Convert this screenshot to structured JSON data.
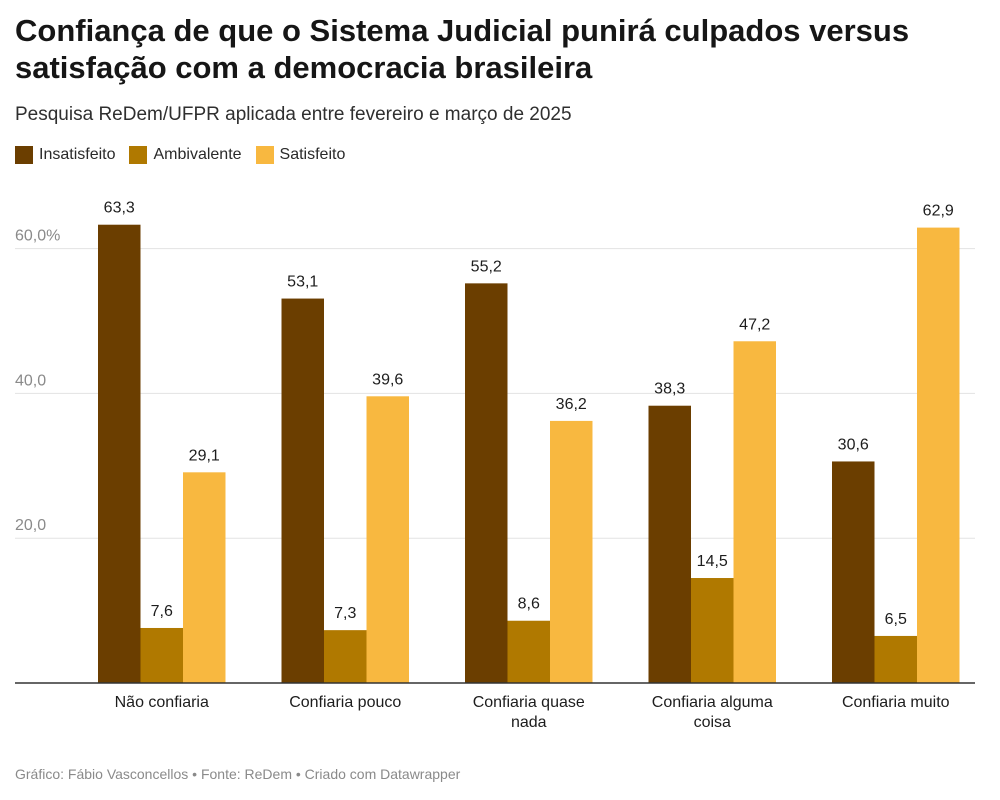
{
  "header": {
    "title": "Confiança de que o Sistema Judicial punirá culpados versus satisfação com a democracia brasileira",
    "subtitle": "Pesquisa ReDem/UFPR aplicada entre fevereiro e março de 2025"
  },
  "footer": {
    "text": "Gráfico: Fábio Vasconcellos • Fonte: ReDem • Criado com Datawrapper"
  },
  "chart_data": {
    "type": "bar",
    "categories": [
      [
        "Não confiaria"
      ],
      [
        "Confiaria pouco"
      ],
      [
        "Confiaria quase",
        "nada"
      ],
      [
        "Confiaria alguma",
        "coisa"
      ],
      [
        "Confiaria muito"
      ]
    ],
    "series": [
      {
        "name": "Insatisfeito",
        "color": "#6b3e00",
        "values": [
          63.3,
          53.1,
          55.2,
          38.3,
          30.6
        ],
        "labels": [
          "63,3",
          "53,1",
          "55,2",
          "38,3",
          "30,6"
        ]
      },
      {
        "name": "Ambivalente",
        "color": "#b07900",
        "values": [
          7.6,
          7.3,
          8.6,
          14.5,
          6.5
        ],
        "labels": [
          "7,6",
          "7,3",
          "8,6",
          "14,5",
          "6,5"
        ]
      },
      {
        "name": "Satisfeito",
        "color": "#f8b840",
        "values": [
          29.1,
          39.6,
          36.2,
          47.2,
          62.9
        ],
        "labels": [
          "29,1",
          "39,6",
          "36,2",
          "47,2",
          "62,9"
        ]
      }
    ],
    "yticks": [
      {
        "value": 20,
        "label": "20,0"
      },
      {
        "value": 40,
        "label": "40,0"
      },
      {
        "value": 60,
        "label": "60,0%"
      }
    ],
    "ylim": [
      0,
      70
    ],
    "grid": true,
    "legend_position": "top-left"
  }
}
